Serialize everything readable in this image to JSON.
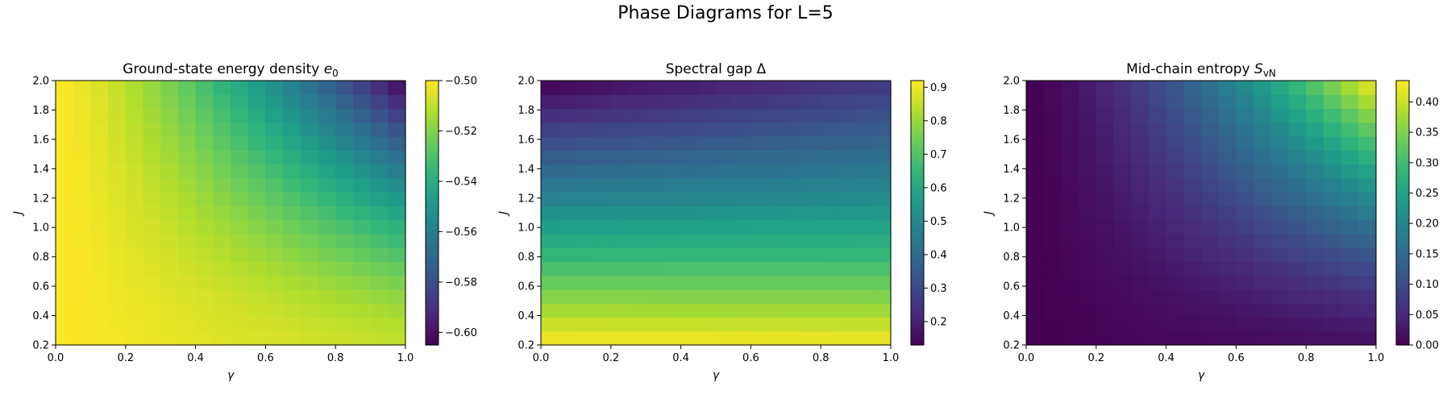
{
  "figure": {
    "title": "Phase Diagrams for L=5"
  },
  "chart_data": [
    {
      "type": "heatmap",
      "title": "Ground-state energy density ",
      "title_math": {
        "base": "e",
        "sub": "0"
      },
      "xlabel": "γ",
      "ylabel": "J",
      "x_range": [
        0.0,
        1.0
      ],
      "y_range": [
        0.2,
        2.0
      ],
      "x_ticks": [
        "0.0",
        "0.2",
        "0.4",
        "0.6",
        "0.8",
        "1.0"
      ],
      "y_ticks": [
        "0.2",
        "0.4",
        "0.6",
        "0.8",
        "1.0",
        "1.2",
        "1.4",
        "1.6",
        "1.8",
        "2.0"
      ],
      "grid_size": [
        20,
        19
      ],
      "value_range": [
        -0.605,
        -0.5
      ],
      "colorbar_ticks": [
        "−0.60",
        "−0.58",
        "−0.56",
        "−0.54",
        "−0.52",
        "−0.50"
      ],
      "colorbar_values": [
        -0.6,
        -0.58,
        -0.56,
        -0.54,
        -0.52,
        -0.5
      ],
      "corner_values": {
        "gamma0_J0.2": -0.5,
        "gamma1_J0.2": -0.51,
        "gamma0_J2": -0.5,
        "gamma1_J2": -0.605
      },
      "colormap": "viridis"
    },
    {
      "type": "heatmap",
      "title": "Spectral gap Δ",
      "xlabel": "γ",
      "ylabel": "J",
      "x_range": [
        0.0,
        1.0
      ],
      "y_range": [
        0.2,
        2.0
      ],
      "x_ticks": [
        "0.0",
        "0.2",
        "0.4",
        "0.6",
        "0.8",
        "1.0"
      ],
      "y_ticks": [
        "0.2",
        "0.4",
        "0.6",
        "0.8",
        "1.0",
        "1.2",
        "1.4",
        "1.6",
        "1.8",
        "2.0"
      ],
      "grid_size": [
        20,
        19
      ],
      "value_range": [
        0.13,
        0.92
      ],
      "colorbar_ticks": [
        "0.2",
        "0.3",
        "0.4",
        "0.5",
        "0.6",
        "0.7",
        "0.8",
        "0.9"
      ],
      "colorbar_values": [
        0.2,
        0.3,
        0.4,
        0.5,
        0.6,
        0.7,
        0.8,
        0.9
      ],
      "corner_values": {
        "gamma0_J0.2": 0.92,
        "gamma1_J0.2": 0.91,
        "gamma0_J2": 0.13,
        "gamma1_J2": 0.27
      },
      "colormap": "viridis"
    },
    {
      "type": "heatmap",
      "title": "Mid-chain entropy ",
      "title_math": {
        "base": "S",
        "sub": "vN"
      },
      "xlabel": "γ",
      "ylabel": "J",
      "x_range": [
        0.0,
        1.0
      ],
      "y_range": [
        0.2,
        2.0
      ],
      "x_ticks": [
        "0.0",
        "0.2",
        "0.4",
        "0.6",
        "0.8",
        "1.0"
      ],
      "y_ticks": [
        "0.2",
        "0.4",
        "0.6",
        "0.8",
        "1.0",
        "1.2",
        "1.4",
        "1.6",
        "1.8",
        "2.0"
      ],
      "grid_size": [
        20,
        19
      ],
      "value_range": [
        0.0,
        0.435
      ],
      "colorbar_ticks": [
        "0.00",
        "0.05",
        "0.10",
        "0.15",
        "0.20",
        "0.25",
        "0.30",
        "0.35",
        "0.40"
      ],
      "colorbar_values": [
        0.0,
        0.05,
        0.1,
        0.15,
        0.2,
        0.25,
        0.3,
        0.35,
        0.4
      ],
      "corner_values": {
        "gamma0_J0.2": 0.0,
        "gamma1_J0.2": 0.02,
        "gamma0_J2": 0.0,
        "gamma1_J2": 0.435
      },
      "colormap": "viridis"
    }
  ]
}
